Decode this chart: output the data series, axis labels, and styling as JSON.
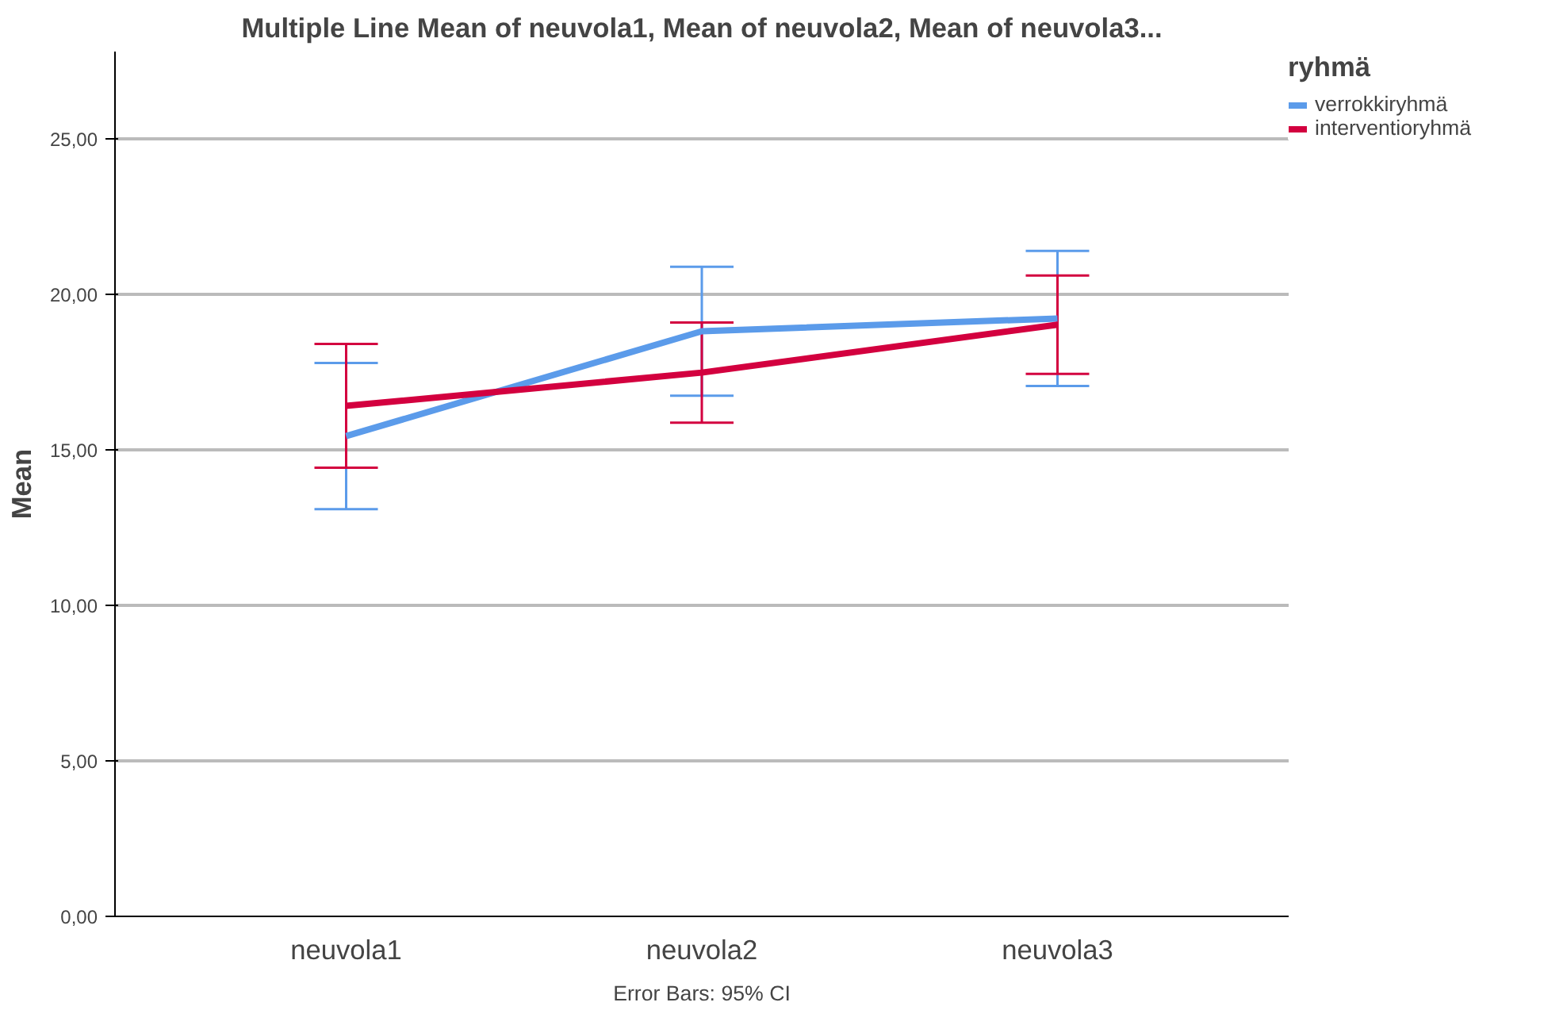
{
  "chart_data": {
    "type": "line",
    "title": "Multiple Line Mean of neuvola1, Mean of neuvola2, Mean of neuvola3...",
    "ylabel": "Mean",
    "legend_title": "ryhmä",
    "categories": [
      "neuvola1",
      "neuvola2",
      "neuvola3"
    ],
    "series": [
      {
        "name": "verrokkiryhmä",
        "color": "#5b9bea",
        "values": [
          15.44,
          18.81,
          19.22
        ],
        "errors": [
          2.35,
          2.07,
          2.17
        ]
      },
      {
        "name": "interventioryhmä",
        "color": "#d3003f",
        "values": [
          16.41,
          17.48,
          19.02
        ],
        "errors": [
          1.99,
          1.61,
          1.58
        ]
      }
    ],
    "ylim": [
      0,
      27.8
    ],
    "yticks": [
      {
        "value": 0,
        "label": "0,00"
      },
      {
        "value": 5,
        "label": "5,00"
      },
      {
        "value": 10,
        "label": "10,00"
      },
      {
        "value": 15,
        "label": "15,00"
      },
      {
        "value": 20,
        "label": "20,00"
      },
      {
        "value": 25,
        "label": "25,00"
      }
    ],
    "grid": "y",
    "legend": "top right",
    "marker": "none",
    "line_style": "solid",
    "annotations": [
      "Error Bars: 95% CI"
    ]
  }
}
